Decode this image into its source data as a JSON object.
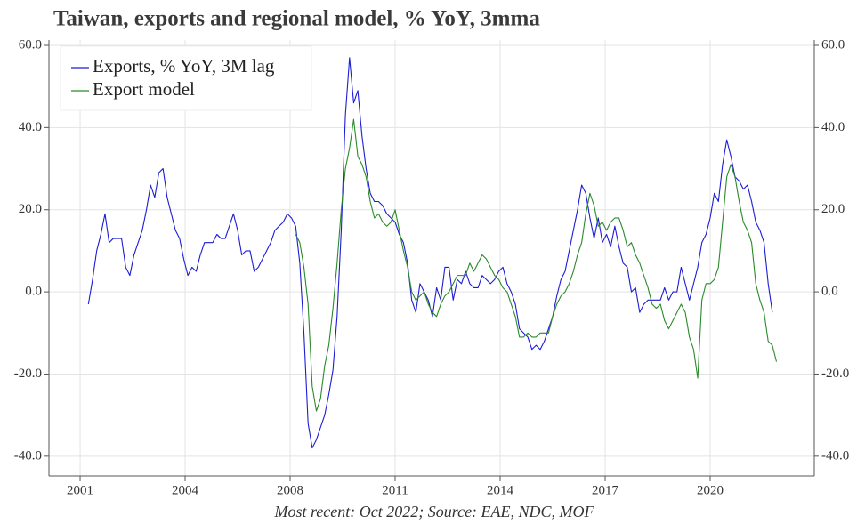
{
  "chart_data": {
    "type": "line",
    "title": "Taiwan, exports and regional model, % YoY, 3mma",
    "caption": "Most recent: Oct 2022; Source: EAE, NDC, MOF",
    "x": [
      2001.25,
      2001.375,
      2001.5,
      2001.625,
      2001.75,
      2001.875,
      2002,
      2002.125,
      2002.25,
      2002.375,
      2002.5,
      2002.625,
      2002.75,
      2002.875,
      2003,
      2003.125,
      2003.25,
      2003.375,
      2003.5,
      2003.625,
      2003.75,
      2003.875,
      2004,
      2004.125,
      2004.25,
      2004.375,
      2004.5,
      2004.625,
      2004.75,
      2004.875,
      2005,
      2005.125,
      2005.25,
      2005.375,
      2005.5,
      2005.625,
      2005.75,
      2005.875,
      2006,
      2006.125,
      2006.25,
      2006.375,
      2006.5,
      2006.625,
      2006.75,
      2006.875,
      2007,
      2007.125,
      2007.25,
      2007.375,
      2007.5,
      2007.625,
      2007.75,
      2007.875,
      2008,
      2008.125,
      2008.25,
      2008.375,
      2008.5,
      2008.625,
      2008.75,
      2008.875,
      2009,
      2009.125,
      2009.25,
      2009.375,
      2009.5,
      2009.625,
      2009.75,
      2009.875,
      2010,
      2010.125,
      2010.25,
      2010.375,
      2010.5,
      2010.625,
      2010.75,
      2010.875,
      2011,
      2011.125,
      2011.25,
      2011.375,
      2011.5,
      2011.625,
      2011.75,
      2011.875,
      2012,
      2012.125,
      2012.25,
      2012.375,
      2012.5,
      2012.625,
      2012.75,
      2012.875,
      2013,
      2013.125,
      2013.25,
      2013.375,
      2013.5,
      2013.625,
      2013.75,
      2013.875,
      2014,
      2014.125,
      2014.25,
      2014.375,
      2014.5,
      2014.625,
      2014.75,
      2014.875,
      2015,
      2015.125,
      2015.25,
      2015.375,
      2015.5,
      2015.625,
      2015.75,
      2015.875,
      2016,
      2016.125,
      2016.25,
      2016.375,
      2016.5,
      2016.625,
      2016.75,
      2016.875,
      2017,
      2017.125,
      2017.25,
      2017.375,
      2017.5,
      2017.625,
      2017.75,
      2017.875,
      2018,
      2018.125,
      2018.25,
      2018.375,
      2018.5,
      2018.625,
      2018.75,
      2018.875,
      2019,
      2019.125,
      2019.25,
      2019.375,
      2019.5,
      2019.625,
      2019.75,
      2019.875,
      2020,
      2020.125,
      2020.25,
      2020.375,
      2020.5,
      2020.625,
      2020.75,
      2020.875,
      2021,
      2021.125,
      2021.25,
      2021.375,
      2021.5,
      2021.625,
      2021.75,
      2021.875,
      2022
    ],
    "series": [
      {
        "name": "Exports, % YoY, 3M lag",
        "color": "#1c1cd4",
        "values": [
          -3,
          3,
          10,
          14,
          19,
          12,
          13,
          13,
          13,
          6,
          4,
          9,
          12,
          15,
          20,
          26,
          23,
          29,
          30,
          23,
          19,
          15,
          13,
          8,
          4,
          6,
          5,
          9,
          12,
          12,
          12,
          14,
          13,
          13,
          16,
          19,
          15,
          9,
          10,
          10,
          5,
          6,
          8,
          10,
          12,
          15,
          16,
          17,
          19,
          18,
          16,
          7,
          -10,
          -32,
          -38,
          -36,
          -33,
          -30,
          -25,
          -19,
          -6,
          15,
          43,
          57,
          46,
          49,
          38,
          30,
          24,
          22,
          22,
          21,
          19,
          18,
          17,
          14,
          12,
          7,
          -2,
          -5,
          2,
          0,
          -2,
          -6,
          1,
          -2,
          6,
          6,
          -2,
          3,
          2,
          5,
          2,
          1,
          1,
          4,
          3,
          2,
          3,
          5,
          6,
          2,
          0,
          -3,
          -9,
          -10,
          -11,
          -14,
          -13,
          -14,
          -12,
          -9,
          -6,
          -1,
          3,
          5,
          10,
          15,
          20,
          26,
          24,
          18,
          13,
          18,
          12,
          14,
          11,
          16,
          11,
          7,
          6,
          0,
          1,
          -5,
          -3,
          -2,
          -2,
          -2,
          -2,
          1,
          -2,
          0,
          0,
          6,
          2,
          -2,
          2,
          6,
          12,
          14,
          18,
          24,
          22,
          31,
          37,
          33,
          28,
          27,
          25,
          26,
          22,
          17,
          15,
          12,
          2,
          -5,
          null
        ]
      },
      {
        "name": "Export model",
        "color": "#2a8a2a",
        "values": [
          null,
          null,
          null,
          null,
          null,
          null,
          null,
          null,
          null,
          null,
          null,
          null,
          null,
          null,
          null,
          null,
          null,
          null,
          null,
          null,
          null,
          null,
          null,
          null,
          null,
          null,
          null,
          null,
          null,
          null,
          null,
          null,
          null,
          null,
          null,
          null,
          null,
          null,
          null,
          null,
          null,
          null,
          null,
          null,
          null,
          null,
          null,
          null,
          null,
          null,
          14,
          12,
          6,
          -3,
          -23,
          -29,
          -26,
          -18,
          -13,
          -4,
          7,
          20,
          30,
          35,
          42,
          33,
          31,
          28,
          22,
          18,
          19,
          17,
          16,
          17,
          20,
          15,
          10,
          6,
          0,
          -2,
          -1,
          0,
          -3,
          -5,
          -6,
          -3,
          -1,
          0,
          2,
          4,
          4,
          4,
          7,
          5,
          7,
          9,
          8,
          6,
          4,
          3,
          1,
          0,
          -3,
          -6,
          -11,
          -11,
          -10,
          -11,
          -11,
          -10,
          -10,
          -10,
          -6,
          -3,
          -1,
          0,
          2,
          5,
          9,
          12,
          19,
          24,
          21,
          16,
          17,
          15,
          17,
          18,
          18,
          15,
          11,
          12,
          9,
          7,
          4,
          1,
          -3,
          -4,
          -3,
          -7,
          -9,
          -7,
          -5,
          -3,
          -5,
          -11,
          -14,
          -21,
          -2,
          2,
          2,
          3,
          6,
          17,
          28,
          31,
          28,
          22,
          17,
          15,
          12,
          2,
          -2,
          -5,
          -12,
          -13,
          -17
        ]
      }
    ],
    "xlim": [
      2000.06,
      2023.14
    ],
    "xticks": [
      {
        "value": 2001,
        "label": "2001"
      },
      {
        "value": 2004.1667,
        "label": "2004"
      },
      {
        "value": 2007.3333,
        "label": "2008"
      },
      {
        "value": 2010.5,
        "label": "2011"
      },
      {
        "value": 2013.6667,
        "label": "2014"
      },
      {
        "value": 2016.8333,
        "label": "2017"
      },
      {
        "value": 2020,
        "label": "2020"
      }
    ],
    "ylim": [
      -44.8,
      61.3
    ],
    "yticks": [
      {
        "value": -40,
        "label": "-40.0"
      },
      {
        "value": -20,
        "label": "-20.0"
      },
      {
        "value": 0,
        "label": "0.0"
      },
      {
        "value": 20,
        "label": "20.0"
      },
      {
        "value": 40,
        "label": "40.0"
      },
      {
        "value": 60,
        "label": "60.0"
      }
    ],
    "y2lim": [
      -44.8,
      61.3
    ],
    "y2ticks": [
      {
        "value": -40,
        "label": "-40.0"
      },
      {
        "value": -20,
        "label": "-20.0"
      },
      {
        "value": 0,
        "label": "0.0"
      },
      {
        "value": 20,
        "label": "20.0"
      },
      {
        "value": 40,
        "label": "40.0"
      },
      {
        "value": 60,
        "label": "60.0"
      }
    ],
    "grid": true,
    "legend": "upper left"
  }
}
